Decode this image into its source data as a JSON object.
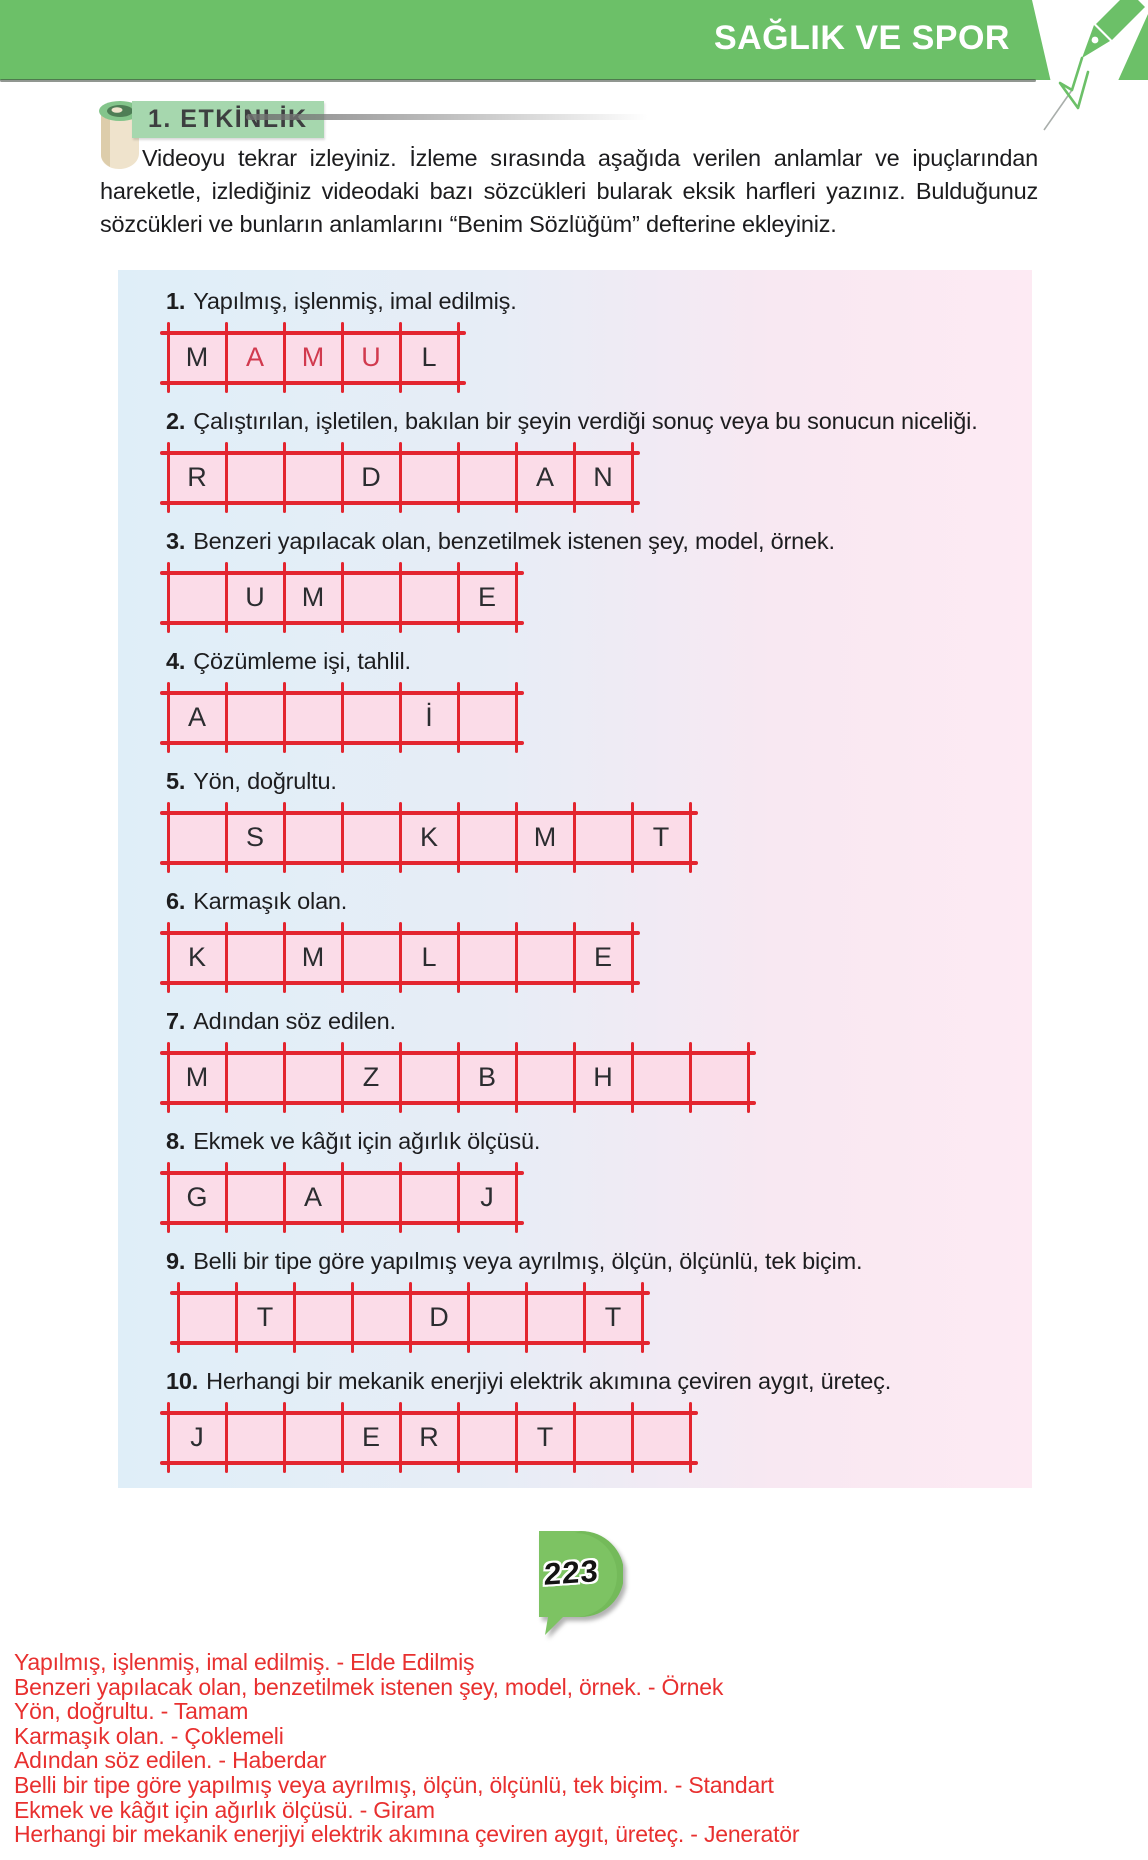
{
  "header": {
    "title": "SAĞLIK VE SPOR"
  },
  "icons": {
    "header_right": "pen-icon",
    "activity_marker": "scroll-icon",
    "page_badge": "speech-bubble-icon"
  },
  "colors": {
    "banner_green": "#6cc068",
    "label_green": "#a6d7ae",
    "badge_green": "#7dc363",
    "box_fill": "#fbdce8",
    "box_border": "#e3252f",
    "answer_red": "#e8302f",
    "handwritten_letter_red": "#d13a4e",
    "panel_gradient_left": "#dfeef8",
    "panel_gradient_right": "#fdeaf3"
  },
  "activity": {
    "label": "1. ETKİNLİK",
    "instructions": "Videoyu tekrar izleyiniz. İzleme sırasında aşağıda verilen anlamlar ve ipuçlarından hareketle, izlediğiniz videodaki bazı sözcükleri bularak eksik harfleri yazınız. Bulduğunuz sözcükleri ve bunların anlamlarını “Benim Sözlüğüm” defterine ekleyiniz.",
    "puzzles": [
      {
        "number": "1.",
        "clue": "Yapılmış, işlenmiş, imal edilmiş.",
        "cells": [
          {
            "l": "M"
          },
          {
            "l": "A",
            "red": true
          },
          {
            "l": "M",
            "red": true
          },
          {
            "l": "U",
            "red": true
          },
          {
            "l": "L"
          }
        ]
      },
      {
        "number": "2.",
        "clue": "Çalıştırılan, işletilen, bakılan bir şeyin verdiği sonuç veya bu sonucun niceliği.",
        "cells": [
          {
            "l": "R"
          },
          {
            "l": ""
          },
          {
            "l": ""
          },
          {
            "l": "D"
          },
          {
            "l": ""
          },
          {
            "l": ""
          },
          {
            "l": "A"
          },
          {
            "l": "N"
          }
        ]
      },
      {
        "number": "3.",
        "clue": "Benzeri yapılacak olan, benzetilmek istenen şey, model, örnek.",
        "cells": [
          {
            "l": ""
          },
          {
            "l": "U"
          },
          {
            "l": "M"
          },
          {
            "l": ""
          },
          {
            "l": ""
          },
          {
            "l": "E"
          }
        ]
      },
      {
        "number": "4.",
        "clue": "Çözümleme işi, tahlil.",
        "cells": [
          {
            "l": "A"
          },
          {
            "l": ""
          },
          {
            "l": ""
          },
          {
            "l": ""
          },
          {
            "l": "İ"
          },
          {
            "l": ""
          }
        ]
      },
      {
        "number": "5.",
        "clue": "Yön, doğrultu.",
        "cells": [
          {
            "l": ""
          },
          {
            "l": "S"
          },
          {
            "l": ""
          },
          {
            "l": ""
          },
          {
            "l": "K"
          },
          {
            "l": ""
          },
          {
            "l": "M"
          },
          {
            "l": ""
          },
          {
            "l": "T"
          }
        ]
      },
      {
        "number": "6.",
        "clue": "Karmaşık olan.",
        "cells": [
          {
            "l": "K"
          },
          {
            "l": ""
          },
          {
            "l": "M"
          },
          {
            "l": ""
          },
          {
            "l": "L"
          },
          {
            "l": ""
          },
          {
            "l": ""
          },
          {
            "l": "E"
          }
        ]
      },
      {
        "number": "7.",
        "clue": "Adından söz edilen.",
        "cells": [
          {
            "l": "M"
          },
          {
            "l": ""
          },
          {
            "l": ""
          },
          {
            "l": "Z"
          },
          {
            "l": ""
          },
          {
            "l": "B"
          },
          {
            "l": ""
          },
          {
            "l": "H"
          },
          {
            "l": ""
          },
          {
            "l": ""
          }
        ]
      },
      {
        "number": "8.",
        "clue": "Ekmek ve kâğıt için ağırlık ölçüsü.",
        "cells": [
          {
            "l": "G"
          },
          {
            "l": ""
          },
          {
            "l": "A"
          },
          {
            "l": ""
          },
          {
            "l": ""
          },
          {
            "l": "J"
          }
        ]
      },
      {
        "number": "9.",
        "clue": "Belli bir tipe göre yapılmış veya ayrılmış, ölçün, ölçünlü, tek biçim.",
        "cells": [
          {
            "l": ""
          },
          {
            "l": "T"
          },
          {
            "l": ""
          },
          {
            "l": ""
          },
          {
            "l": "D"
          },
          {
            "l": ""
          },
          {
            "l": ""
          },
          {
            "l": "T"
          }
        ]
      },
      {
        "number": "10.",
        "clue": "Herhangi bir mekanik enerjiyi elektrik akımına çeviren aygıt, üreteç.",
        "cells": [
          {
            "l": "J"
          },
          {
            "l": ""
          },
          {
            "l": ""
          },
          {
            "l": "E"
          },
          {
            "l": "R"
          },
          {
            "l": ""
          },
          {
            "l": "T"
          },
          {
            "l": ""
          },
          {
            "l": ""
          }
        ]
      }
    ]
  },
  "page_number": "223",
  "answers": [
    "Yapılmış, işlenmiş, imal edilmiş. - Elde Edilmiş",
    "Benzeri yapılacak olan, benzetilmek istenen şey, model, örnek. - Örnek",
    "Yön, doğrultu. - Tamam",
    "Karmaşık olan. - Çoklemeli",
    "Adından söz edilen. - Haberdar",
    "Belli bir tipe göre yapılmış veya ayrılmış, ölçün, ölçünlü, tek biçim. - Standart",
    "Ekmek ve kâğıt için ağırlık ölçüsü. - Giram",
    "Herhangi bir mekanik enerjiyi elektrik akımına çeviren aygıt, üreteç. - Jeneratör"
  ]
}
